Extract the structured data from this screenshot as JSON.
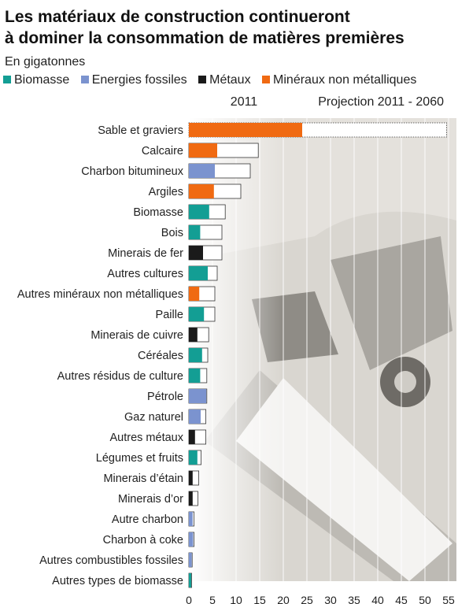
{
  "header": {
    "title_line1": "Les matériaux de construction continueront",
    "title_line2": "à dominer la consommation de matières premières",
    "subtitle": "En gigatonnes"
  },
  "legend": {
    "items": [
      {
        "label": "Biomasse",
        "color": "#139e94"
      },
      {
        "label": "Energies fossiles",
        "color": "#7b93cf"
      },
      {
        "label": "Métaux",
        "color": "#1a1a1a"
      },
      {
        "label": "Minéraux non métalliques",
        "color": "#f06a12"
      }
    ]
  },
  "chart_data": {
    "type": "bar",
    "orientation": "horizontal",
    "title": "Les matériaux de construction continueront à dominer la consommation de matières premières",
    "subtitle": "En gigatonnes",
    "column_headers": [
      "2011",
      "Projection 2011 - 2060"
    ],
    "categories": [
      "Sable et graviers",
      "Calcaire",
      "Charbon bitumineux",
      "Argiles",
      "Biomasse",
      "Bois",
      "Minerais de fer",
      "Autres cultures",
      "Autres minéraux non métalliques",
      "Paille",
      "Minerais de cuivre",
      "Céréales",
      "Autres résidus de culture",
      "Pétrole",
      "Gaz naturel",
      "Autres métaux",
      "Légumes et fruits",
      "Minerais d’étain",
      "Minerais d’or",
      "Autre charbon",
      "Charbon à coke",
      "Autres combustibles fossiles",
      "Autres types de biomasse"
    ],
    "groups": [
      "Minéraux non métalliques",
      "Minéraux non métalliques",
      "Energies fossiles",
      "Minéraux non métalliques",
      "Biomasse",
      "Biomasse",
      "Métaux",
      "Biomasse",
      "Minéraux non métalliques",
      "Biomasse",
      "Métaux",
      "Biomasse",
      "Biomasse",
      "Energies fossiles",
      "Energies fossiles",
      "Métaux",
      "Biomasse",
      "Métaux",
      "Métaux",
      "Energies fossiles",
      "Energies fossiles",
      "Energies fossiles",
      "Biomasse"
    ],
    "series": [
      {
        "name": "2011",
        "values": [
          24,
          6,
          5.5,
          5.3,
          4.3,
          2.4,
          3,
          4,
          2.2,
          3.2,
          1.8,
          2.8,
          2.4,
          3.7,
          2.5,
          1.3,
          1.8,
          0.8,
          0.8,
          0.8,
          0.9,
          0.6,
          0.5
        ]
      },
      {
        "name": "Projection 2011 - 2060",
        "values": [
          54.6,
          14.7,
          13,
          11,
          7.7,
          7,
          7,
          6,
          5.5,
          5.5,
          4.2,
          4,
          3.8,
          3.8,
          3.6,
          3.6,
          2.6,
          2.1,
          1.9,
          1.1,
          1.1,
          0.7,
          0.6
        ]
      }
    ],
    "x_ticks": [
      "0",
      "5",
      "10",
      "15",
      "20",
      "25",
      "30",
      "35",
      "40",
      "45",
      "50",
      "55"
    ],
    "xlim": [
      0,
      55
    ],
    "grid": true,
    "legend_position": "top"
  }
}
